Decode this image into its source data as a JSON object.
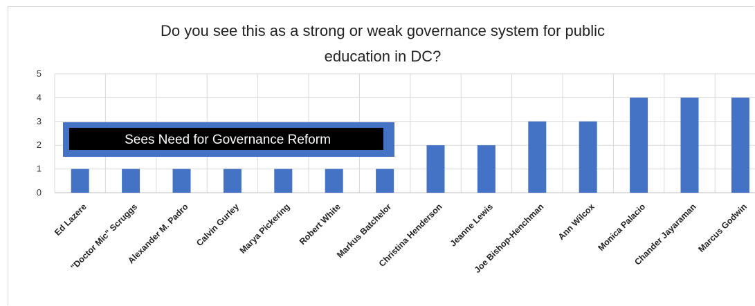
{
  "chart_data": {
    "type": "bar",
    "title": "Do you see this as a strong or weak governance system for public education in DC?",
    "title_lines": [
      "Do you see this as a strong or weak governance system for public",
      "education in DC?"
    ],
    "categories": [
      "Ed Lazere",
      "\"Doctor Mic\" Scruggs",
      "Alexander M. Padro",
      "Calvin Gurley",
      "Marya Pickering",
      "Robert White",
      "Markus Batchelor",
      "Christina Henderson",
      "Jeanne Lewis",
      "Joe Bishop-Henchman",
      "Ann Wilcox",
      "Monica Palacio",
      "Chander Jayaraman",
      "Marcus Godwin"
    ],
    "values": [
      1,
      1,
      1,
      1,
      1,
      1,
      1,
      2,
      2,
      3,
      3,
      4,
      4,
      4
    ],
    "xlabel": "",
    "ylabel": "",
    "ylim": [
      0,
      5
    ],
    "yticks": [
      0,
      1,
      2,
      3,
      4,
      5
    ],
    "grid": true,
    "bar_color": "#4472c4",
    "annotation": {
      "text": "Sees Need for Governance Reform",
      "box_color": "#000000",
      "border_color": "#4472c4",
      "text_color": "#ffffff"
    }
  }
}
